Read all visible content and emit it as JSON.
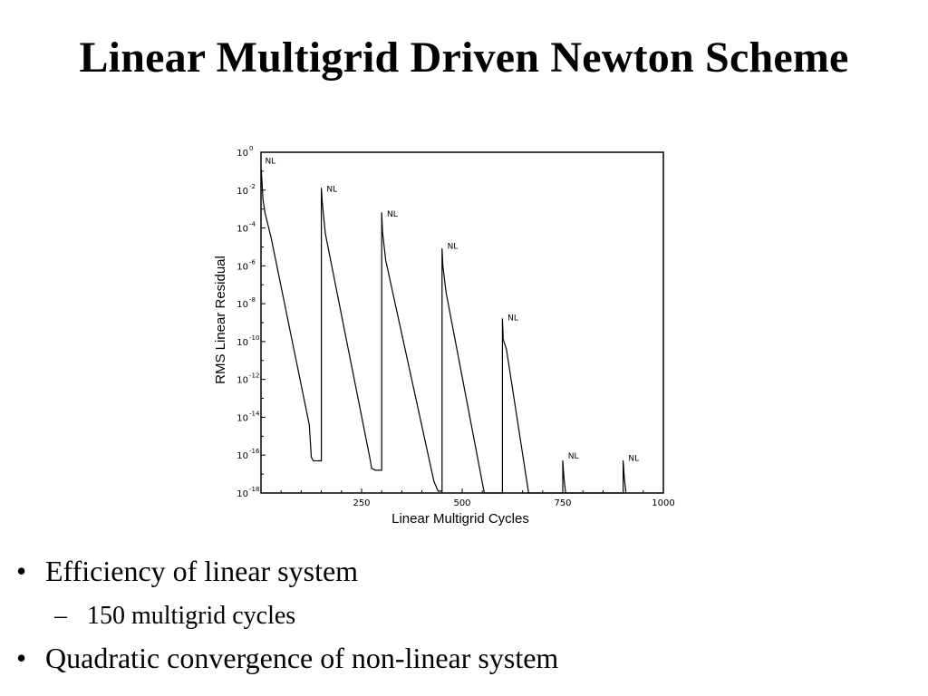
{
  "slide": {
    "title": "Linear Multigrid Driven Newton Scheme"
  },
  "bullets": [
    {
      "level": 1,
      "marker": "•",
      "text": "Efficiency of linear system"
    },
    {
      "level": 2,
      "marker": "–",
      "text": "150 multigrid cycles"
    },
    {
      "level": 1,
      "marker": "•",
      "text": "Quadratic convergence of non-linear system"
    }
  ],
  "chart_data": {
    "type": "line",
    "title": "",
    "xlabel": "Linear Multigrid Cycles",
    "ylabel": "RMS Linear Residual",
    "xlim": [
      0,
      1000
    ],
    "ylim_exponent": [
      -18,
      0
    ],
    "y_scale": "log",
    "x_ticks": [
      "250",
      "500",
      "750",
      "1000"
    ],
    "x_tick_values": [
      250,
      500,
      750,
      1000
    ],
    "y_tick_exponents": [
      0,
      -2,
      -4,
      -6,
      -8,
      -10,
      -12,
      -14,
      -16,
      -18
    ],
    "y_tick_labels": [
      "10",
      "10",
      "10",
      "10",
      "10",
      "10",
      "10",
      "10",
      "10",
      "10"
    ],
    "y_tick_sups": [
      "0",
      "-2",
      "-4",
      "-6",
      "-8",
      "-10",
      "-12",
      "-14",
      "-16",
      "-18"
    ],
    "grid": false,
    "series": [
      {
        "x": [
          0,
          1,
          5,
          10,
          25,
          120,
          125,
          130,
          140,
          150,
          150,
          152,
          160,
          270,
          275,
          285,
          300,
          300,
          302,
          310,
          430,
          440,
          450,
          450,
          452,
          460,
          555,
          600,
          600,
          602,
          610,
          665,
          750,
          750,
          753,
          757,
          900,
          900,
          903,
          907
        ],
        "log10_y": [
          -0.9,
          -1.0,
          -2.5,
          -3.2,
          -4.5,
          -14.4,
          -16.1,
          -16.3,
          -16.3,
          -16.3,
          -1.9,
          -2.6,
          -4.3,
          -16.1,
          -16.7,
          -16.8,
          -16.8,
          -3.2,
          -4.2,
          -5.7,
          -17.4,
          -17.9,
          -17.9,
          -5.1,
          -6.0,
          -7.4,
          -18.0,
          -18.0,
          -8.8,
          -9.9,
          -10.4,
          -18.0,
          -18.0,
          -16.3,
          -17.2,
          -18.0,
          -18.0,
          -16.3,
          -17.2,
          -18.0
        ]
      }
    ],
    "annotations": [
      {
        "text": "NL",
        "x": 10,
        "log10_y": -0.4
      },
      {
        "text": "NL",
        "x": 163,
        "log10_y": -1.9
      },
      {
        "text": "NL",
        "x": 313,
        "log10_y": -3.2
      },
      {
        "text": "NL",
        "x": 463,
        "log10_y": -4.9
      },
      {
        "text": "NL",
        "x": 613,
        "log10_y": -8.7
      },
      {
        "text": "NL",
        "x": 763,
        "log10_y": -16.0
      },
      {
        "text": "NL",
        "x": 913,
        "log10_y": -16.1
      }
    ]
  }
}
